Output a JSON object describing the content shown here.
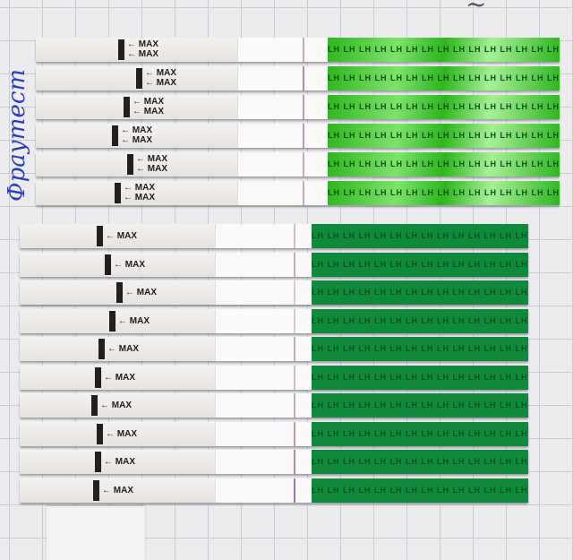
{
  "labels": {
    "handwritten_top_group": "Фраутест",
    "max": "← MAX",
    "lh": "LH"
  },
  "colors": {
    "green_top": "#2db51e",
    "green_bottom": "#0f8a3a",
    "test_line": "#8d5d86",
    "paper": "#ecebee"
  },
  "groups": [
    {
      "name": "top",
      "count": 6,
      "test_line_intensity": [
        0.5,
        0.7,
        0.6,
        0.6,
        0.5,
        0.5
      ]
    },
    {
      "name": "bottom",
      "count": 10,
      "test_line_intensity": [
        0.4,
        0.5,
        0.3,
        0.3,
        0.5,
        0.4,
        0.5,
        0.6,
        0.7,
        0.8
      ]
    }
  ]
}
